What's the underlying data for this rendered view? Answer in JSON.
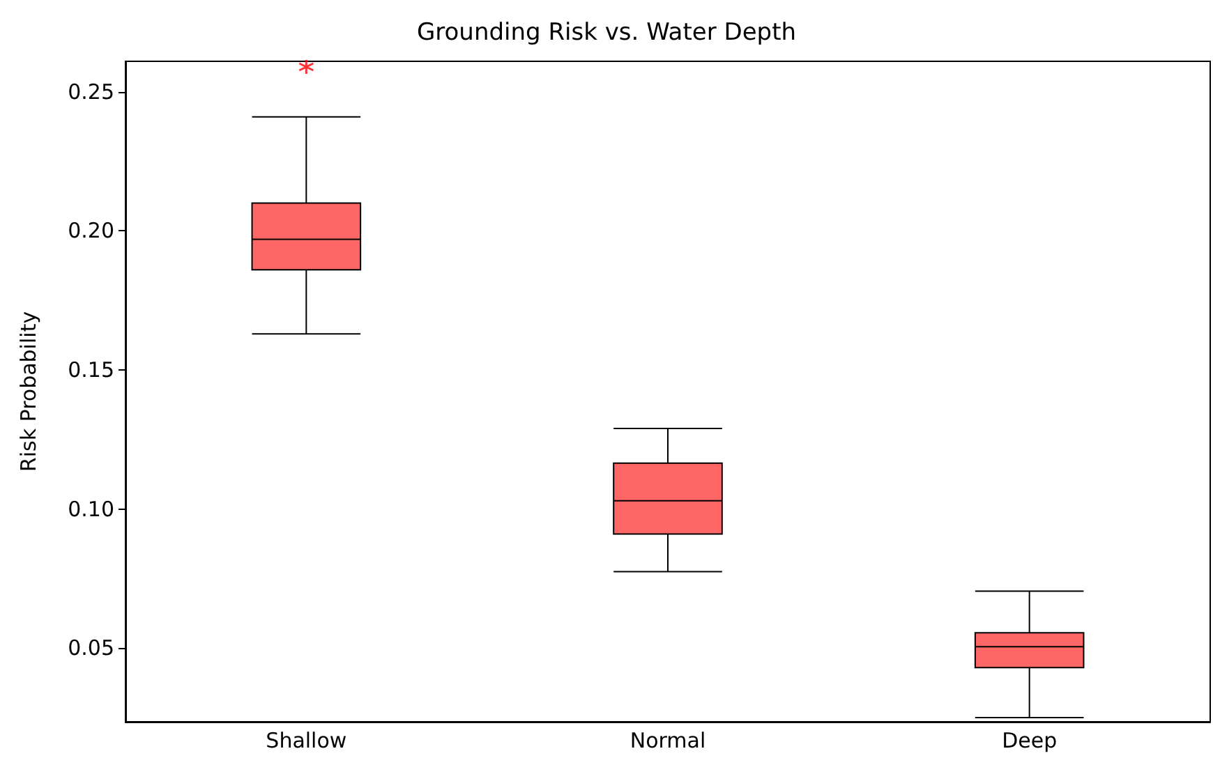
{
  "chart_data": {
    "type": "box",
    "title": "Grounding Risk vs. Water Depth",
    "ylabel": "Risk Probability",
    "categories": [
      "Shallow",
      "Normal",
      "Deep"
    ],
    "series": [
      {
        "color": "#ff6666",
        "boxes": [
          {
            "low": 0.163,
            "q1": 0.186,
            "median": 0.197,
            "q3": 0.21,
            "high": 0.241
          },
          {
            "low": 0.0775,
            "q1": 0.091,
            "median": 0.103,
            "q3": 0.1165,
            "high": 0.129
          },
          {
            "low": 0.025,
            "q1": 0.043,
            "median": 0.0505,
            "q3": 0.0555,
            "high": 0.0705
          }
        ]
      },
      {
        "type": "scatter",
        "color": "#ff0000",
        "x": [
          "Shallow"
        ],
        "values": [
          0.259
        ]
      }
    ],
    "marker": "cross",
    "ylim": [
      0.0235,
      0.261
    ],
    "yticks": [
      {
        "value": 0.05,
        "label": "0.05"
      },
      {
        "value": 0.1,
        "label": "0.10"
      },
      {
        "value": 0.15,
        "label": "0.15"
      },
      {
        "value": 0.2,
        "label": "0.20"
      },
      {
        "value": 0.25,
        "label": "0.25"
      }
    ],
    "grid": false
  }
}
